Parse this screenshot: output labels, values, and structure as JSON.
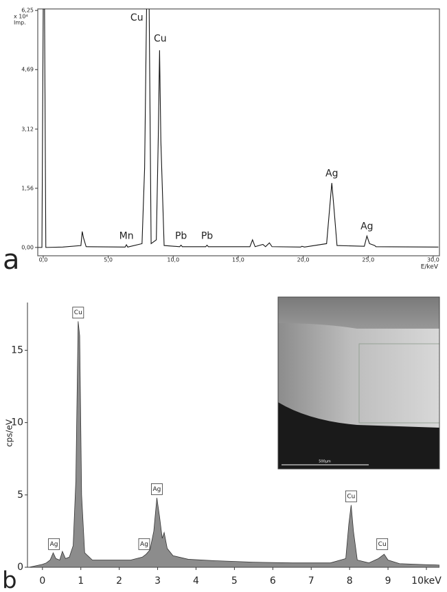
{
  "chart_data": [
    {
      "type": "line",
      "panel_label": "a",
      "y_unit": "x 10⁴",
      "y_label": "Imp.",
      "x_label": "E/keV",
      "color": "#111111",
      "frame": true,
      "xlim": [
        -0.42,
        30.48
      ],
      "ylim": [
        -0.22,
        6.29
      ],
      "xticks": [
        {
          "value": 0,
          "label": "0,0"
        },
        {
          "value": 5,
          "label": "5,0"
        },
        {
          "value": 10,
          "label": "10,0"
        },
        {
          "value": 15,
          "label": "15,0"
        },
        {
          "value": 20,
          "label": "20,0"
        },
        {
          "value": 25,
          "label": "25,0"
        },
        {
          "value": 30,
          "label": "30,0"
        }
      ],
      "yticks": [
        {
          "value": 0,
          "label": "0,00"
        },
        {
          "value": 1.56,
          "label": "1,56"
        },
        {
          "value": 3.12,
          "label": "3,12"
        },
        {
          "value": 4.69,
          "label": "4,69"
        },
        {
          "value": 6.25,
          "label": "6,25"
        }
      ],
      "x": [
        -0.4,
        -0.1,
        0,
        0.1,
        0.2,
        1.5,
        2.9,
        3.0,
        3.1,
        3.3,
        6.3,
        6.4,
        6.5,
        7.6,
        7.8,
        7.95,
        8.15,
        8.3,
        8.7,
        8.85,
        8.95,
        9.05,
        9.3,
        10.5,
        10.6,
        10.7,
        12.5,
        12.6,
        12.7,
        15.9,
        16.1,
        16.3,
        16.9,
        17.1,
        17.4,
        17.6,
        19.8,
        19.9,
        20.1,
        21.8,
        22.05,
        22.2,
        22.35,
        22.6,
        24.7,
        24.9,
        25.1,
        25.5,
        25.6,
        30.4
      ],
      "series": [
        {
          "values": [
            0,
            0,
            6.3,
            6.3,
            0,
            0.01,
            0.05,
            0.42,
            0.25,
            0.02,
            0.01,
            0.07,
            0.01,
            0.1,
            2.1,
            6.3,
            6.3,
            0.1,
            0.2,
            2.9,
            5.2,
            2.8,
            0.05,
            0.02,
            0.06,
            0.02,
            0.02,
            0.06,
            0.02,
            0.02,
            0.2,
            0.02,
            0.08,
            0.02,
            0.12,
            0.02,
            0.01,
            0.03,
            0.01,
            0.1,
            1.1,
            1.7,
            1.1,
            0.05,
            0.03,
            0.3,
            0.1,
            0.05,
            0.02,
            0.01
          ]
        }
      ],
      "annotations": [
        {
          "text": "Cu",
          "x": 7.2,
          "y": 6.05
        },
        {
          "text": "Cu",
          "x": 9.0,
          "y": 5.5
        },
        {
          "text": "Mn",
          "x": 6.4,
          "y": 0.3
        },
        {
          "text": "Pb",
          "x": 10.6,
          "y": 0.3
        },
        {
          "text": "Pb",
          "x": 12.6,
          "y": 0.3
        },
        {
          "text": "Ag",
          "x": 22.2,
          "y": 1.95
        },
        {
          "text": "Ag",
          "x": 24.9,
          "y": 0.55
        }
      ]
    },
    {
      "type": "area",
      "panel_label": "b",
      "y_label": "cps/eV",
      "color": "#8c8c8c",
      "frame": false,
      "annotation_box": true,
      "inset_label": "500µm",
      "xlim": [
        -0.39,
        10.34
      ],
      "ylim": [
        0,
        18.3
      ],
      "xticks": [
        0,
        1,
        2,
        3,
        4,
        5,
        6,
        7,
        8,
        9,
        {
          "value": 10,
          "label": "10keV"
        }
      ],
      "yticks": [
        0,
        5,
        10,
        15
      ],
      "x": [
        -0.35,
        0,
        0.1,
        0.2,
        0.28,
        0.35,
        0.45,
        0.52,
        0.6,
        0.7,
        0.8,
        0.87,
        0.93,
        0.97,
        1.02,
        1.1,
        1.3,
        1.8,
        2.3,
        2.6,
        2.7,
        2.8,
        2.9,
        2.98,
        3.05,
        3.12,
        3.17,
        3.25,
        3.4,
        3.8,
        4.5,
        5.5,
        6.5,
        7.5,
        7.9,
        7.98,
        8.04,
        8.1,
        8.2,
        8.5,
        8.75,
        8.9,
        9.0,
        9.3,
        10.0,
        10.34
      ],
      "series": [
        {
          "values": [
            0,
            0.2,
            0.3,
            0.5,
            1.0,
            0.6,
            0.5,
            1.1,
            0.6,
            0.7,
            1.5,
            6,
            17,
            16,
            5,
            1.0,
            0.5,
            0.5,
            0.5,
            0.7,
            0.9,
            1.2,
            2.5,
            4.8,
            3.5,
            2.0,
            2.4,
            1.3,
            0.8,
            0.55,
            0.45,
            0.35,
            0.3,
            0.3,
            0.6,
            3,
            4.3,
            2.5,
            0.5,
            0.3,
            0.6,
            0.9,
            0.5,
            0.25,
            0.18,
            0.15
          ]
        }
      ],
      "annotations": [
        {
          "text": "Ag",
          "x": 0.3,
          "y": 1.6
        },
        {
          "text": "Cu",
          "x": 0.93,
          "y": 17.6
        },
        {
          "text": "Ag",
          "x": 2.65,
          "y": 1.6
        },
        {
          "text": "Ag",
          "x": 2.98,
          "y": 5.4
        },
        {
          "text": "Cu",
          "x": 8.04,
          "y": 4.9
        },
        {
          "text": "Cu",
          "x": 8.85,
          "y": 1.6
        }
      ]
    }
  ]
}
